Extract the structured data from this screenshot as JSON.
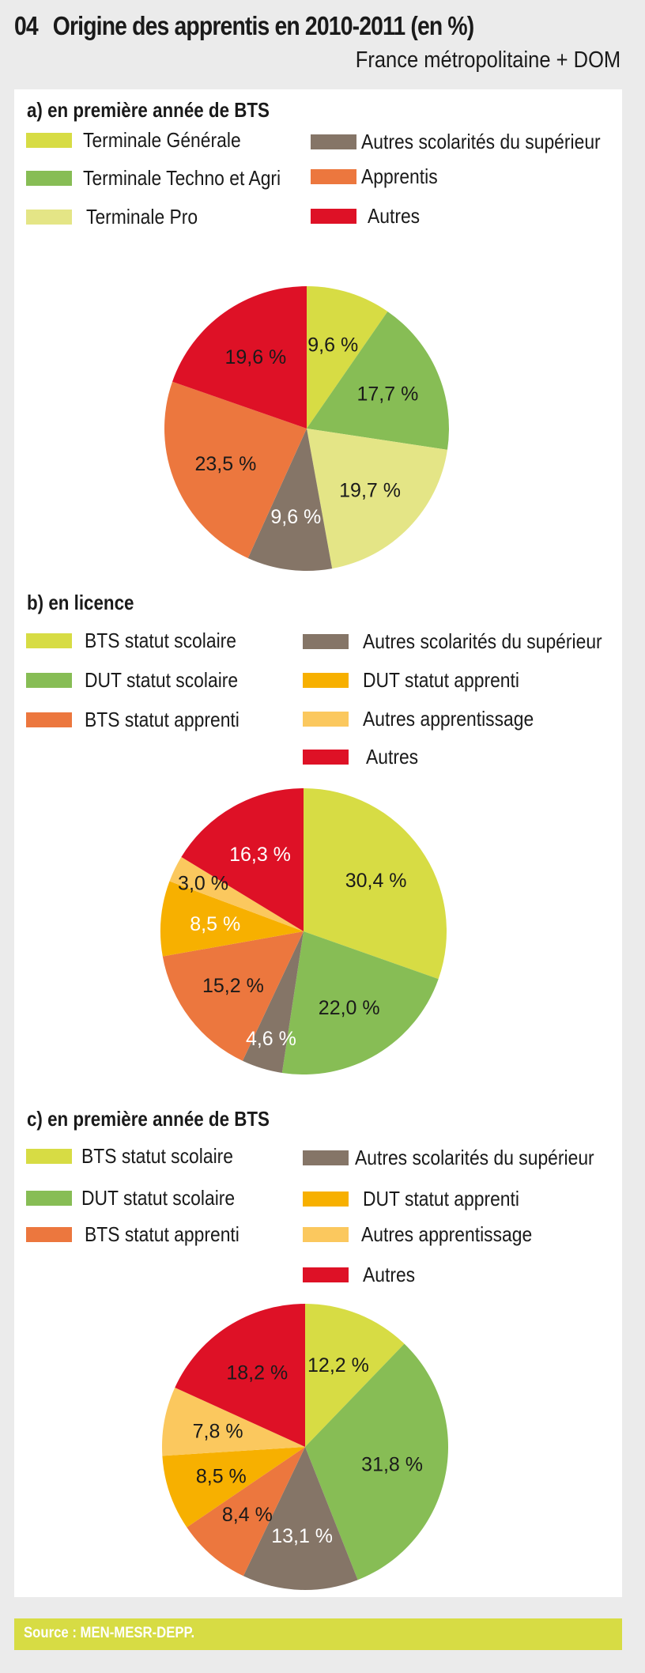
{
  "header": {
    "number": "04",
    "title": "Origine des apprentis en 2010-2011 (en %)",
    "subtitle": "France métropolitaine + DOM"
  },
  "source": "Source : MEN-MESR-DEPP.",
  "colors": {
    "yellow_green": "#d7dc44",
    "green": "#87bd55",
    "pale_yellow": "#e4e586",
    "brown": "#857567",
    "orange": "#ec773e",
    "amber": "#f7b000",
    "light_orange": "#fbc85e",
    "red": "#de1126"
  },
  "chart_data": [
    {
      "type": "pie",
      "title": "a) en première année de BTS",
      "legend": [
        "Terminale Générale",
        "Autres scolarités du supérieur",
        "Terminale Techno et Agri",
        "Apprentis",
        "Terminale Pro",
        "Autres"
      ],
      "slices": [
        {
          "name": "Terminale Générale",
          "value": 9.6,
          "label": "9,6 %",
          "color": "#d7dc44",
          "label_color": "#1a1a1a"
        },
        {
          "name": "Terminale Techno et Agri",
          "value": 17.7,
          "label": "17,7 %",
          "color": "#87bd55",
          "label_color": "#1a1a1a"
        },
        {
          "name": "Terminale Pro",
          "value": 19.7,
          "label": "19,7 %",
          "color": "#e4e586",
          "label_color": "#1a1a1a"
        },
        {
          "name": "Autres scolarités du supérieur",
          "value": 9.6,
          "label": "9,6 %",
          "color": "#857567",
          "label_color": "#ffffff"
        },
        {
          "name": "Apprentis",
          "value": 23.5,
          "label": "23,5 %",
          "color": "#ec773e",
          "label_color": "#1a1a1a"
        },
        {
          "name": "Autres",
          "value": 19.6,
          "label": "19,6 %",
          "color": "#de1126",
          "label_color": "#1a1a1a"
        }
      ]
    },
    {
      "type": "pie",
      "title": "b) en licence",
      "legend": [
        "BTS statut scolaire",
        "Autres scolarités du supérieur",
        "DUT statut scolaire",
        "DUT statut apprenti",
        "BTS statut apprenti",
        "Autres apprentissage",
        "Autres"
      ],
      "slices": [
        {
          "name": "BTS statut scolaire",
          "value": 30.4,
          "label": "30,4 %",
          "color": "#d7dc44",
          "label_color": "#1a1a1a"
        },
        {
          "name": "DUT statut scolaire",
          "value": 22.0,
          "label": "22,0 %",
          "color": "#87bd55",
          "label_color": "#1a1a1a"
        },
        {
          "name": "Autres scolarités du supérieur",
          "value": 4.6,
          "label": "4,6 %",
          "color": "#857567",
          "label_color": "#ffffff"
        },
        {
          "name": "BTS statut apprenti",
          "value": 15.2,
          "label": "15,2 %",
          "color": "#ec773e",
          "label_color": "#1a1a1a"
        },
        {
          "name": "DUT statut apprenti",
          "value": 8.5,
          "label": "8,5 %",
          "color": "#f7b000",
          "label_color": "#ffffff"
        },
        {
          "name": "Autres apprentissage",
          "value": 3.0,
          "label": "3,0 %",
          "color": "#fbc85e",
          "label_color": "#1a1a1a"
        },
        {
          "name": "Autres",
          "value": 16.3,
          "label": "16,3 %",
          "color": "#de1126",
          "label_color": "#ffffff"
        }
      ]
    },
    {
      "type": "pie",
      "title": "c) en première année de BTS",
      "legend": [
        "BTS statut scolaire",
        "Autres scolarités du supérieur",
        "DUT statut scolaire",
        "DUT statut apprenti",
        "BTS statut apprenti",
        "Autres apprentissage",
        "Autres"
      ],
      "slices": [
        {
          "name": "BTS statut scolaire",
          "value": 12.2,
          "label": "12,2 %",
          "color": "#d7dc44",
          "label_color": "#1a1a1a"
        },
        {
          "name": "DUT statut scolaire",
          "value": 31.8,
          "label": "31,8 %",
          "color": "#87bd55",
          "label_color": "#1a1a1a"
        },
        {
          "name": "Autres scolarités du supérieur",
          "value": 13.1,
          "label": "13,1 %",
          "color": "#857567",
          "label_color": "#ffffff"
        },
        {
          "name": "BTS statut apprenti",
          "value": 8.4,
          "label": "8,4 %",
          "color": "#ec773e",
          "label_color": "#1a1a1a"
        },
        {
          "name": "DUT statut apprenti",
          "value": 8.5,
          "label": "8,5 %",
          "color": "#f7b000",
          "label_color": "#1a1a1a"
        },
        {
          "name": "Autres apprentissage",
          "value": 7.8,
          "label": "7,8 %",
          "color": "#fbc85e",
          "label_color": "#1a1a1a"
        },
        {
          "name": "Autres",
          "value": 18.2,
          "label": "18,2 %",
          "color": "#de1126",
          "label_color": "#1a1a1a"
        }
      ]
    }
  ]
}
